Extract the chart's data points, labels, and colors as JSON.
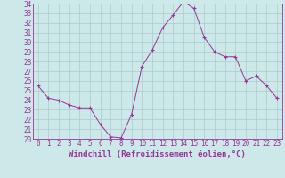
{
  "x": [
    0,
    1,
    2,
    3,
    4,
    5,
    6,
    7,
    8,
    9,
    10,
    11,
    12,
    13,
    14,
    15,
    16,
    17,
    18,
    19,
    20,
    21,
    22,
    23
  ],
  "y": [
    25.5,
    24.2,
    24.0,
    23.5,
    23.2,
    23.2,
    21.5,
    20.2,
    20.1,
    22.5,
    27.5,
    29.2,
    31.5,
    32.8,
    34.2,
    33.5,
    30.5,
    29.0,
    28.5,
    28.5,
    26.0,
    26.5,
    25.5,
    24.2
  ],
  "line_color": "#993399",
  "marker": "+",
  "marker_size": 3,
  "background_color": "#cce8e8",
  "grid_color": "#aacccc",
  "xlabel": "Windchill (Refroidissement éolien,°C)",
  "ylim": [
    20,
    34
  ],
  "xlim_min": -0.5,
  "xlim_max": 23.5,
  "yticks": [
    20,
    21,
    22,
    23,
    24,
    25,
    26,
    27,
    28,
    29,
    30,
    31,
    32,
    33,
    34
  ],
  "xticks": [
    0,
    1,
    2,
    3,
    4,
    5,
    6,
    7,
    8,
    9,
    10,
    11,
    12,
    13,
    14,
    15,
    16,
    17,
    18,
    19,
    20,
    21,
    22,
    23
  ],
  "tick_color": "#993399",
  "label_fontsize": 6.5,
  "tick_fontsize": 5.5,
  "linewidth": 0.7,
  "markerwidth": 0.8
}
